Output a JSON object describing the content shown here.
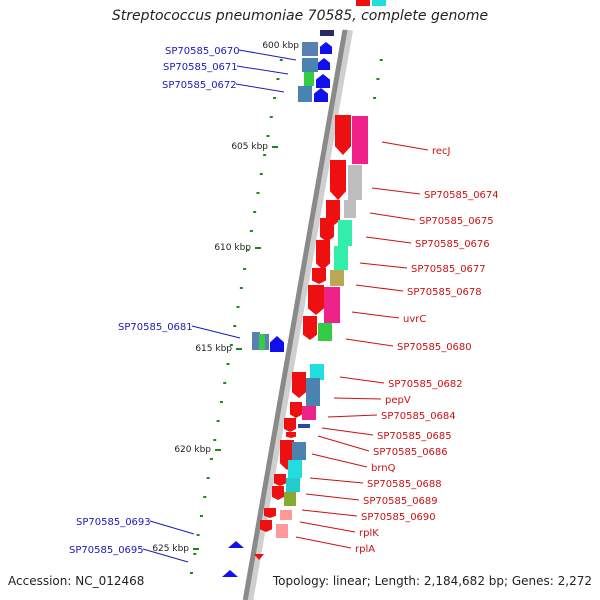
{
  "title": "Streptococcus pneumoniae 70585, complete genome",
  "accession_text": "Accession: NC_012468",
  "summary_text": "Topology: linear; Length: 2,184,682 bp; Genes: 2,272",
  "kbp_ticks": [
    "600 kbp",
    "605 kbp",
    "610 kbp",
    "615 kbp",
    "620 kbp",
    "625 kbp"
  ],
  "left_genes": [
    "SP70585_0670",
    "SP70585_0671",
    "SP70585_0672",
    "SP70585_0681",
    "SP70585_0693",
    "SP70585_0695"
  ],
  "right_genes": [
    "recJ",
    "SP70585_0674",
    "SP70585_0675",
    "SP70585_0676",
    "SP70585_0677",
    "SP70585_0678",
    "uvrC",
    "SP70585_0680",
    "SP70585_0682",
    "pepV",
    "SP70585_0684",
    "SP70585_0685",
    "SP70585_0686",
    "brnQ",
    "SP70585_0688",
    "SP70585_0689",
    "SP70585_0690",
    "rplK",
    "rplA"
  ],
  "colors": {
    "left_label": "#1a1ab8",
    "right_label": "#cc1111",
    "forward_arrow": "#1010ee",
    "reverse_arrow": "#ee1010",
    "tick": "#1a8a1a",
    "axis": "#8a8a8a"
  }
}
